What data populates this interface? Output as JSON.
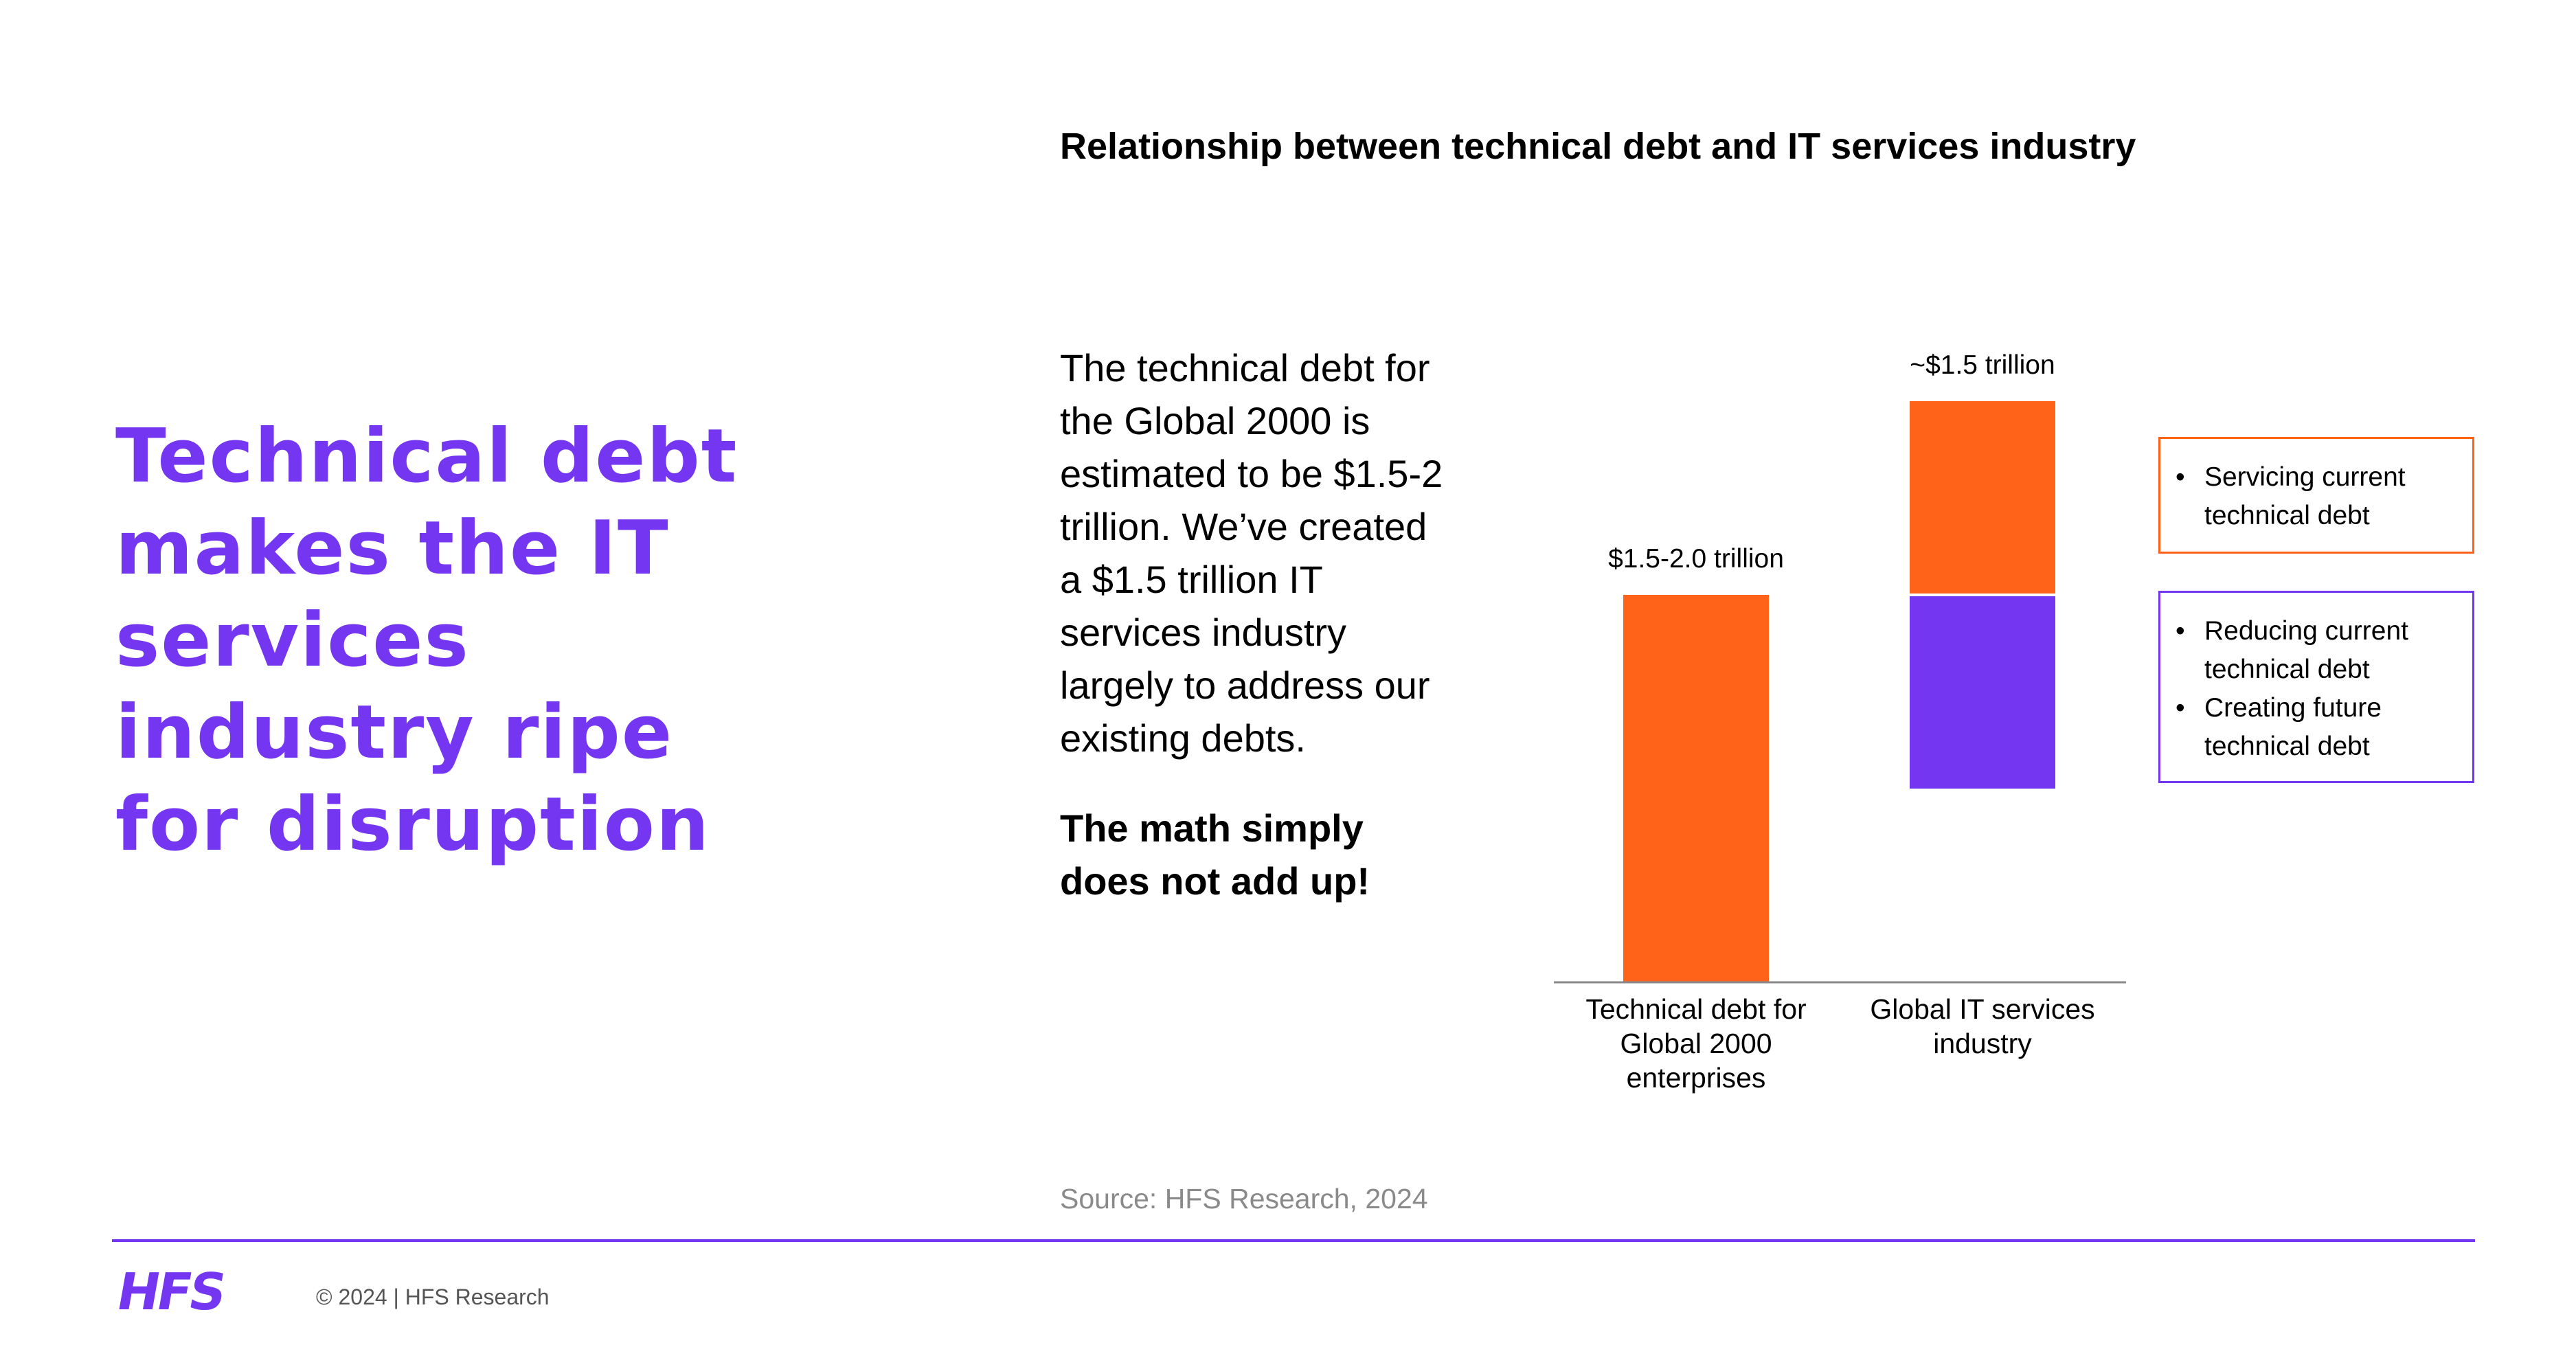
{
  "headline": [
    "Technical debt",
    "makes the IT",
    "services",
    "industry ripe",
    "for disruption"
  ],
  "body_text": [
    "The technical debt for",
    "the Global 2000 is",
    "estimated to be $1.5-2",
    "trillion. We’ve created",
    "a $1.5 trillion IT",
    "services industry",
    "largely to address our",
    "existing debts."
  ],
  "emphasis": [
    "The math simply",
    "does not add up!"
  ],
  "source": "Source: HFS Research, 2024",
  "footer": {
    "logo_text": "HFS",
    "copyright": "© 2024 | HFS Research"
  },
  "colors": {
    "accent": "#7436f0",
    "orange": "#ff6319",
    "purple": "#7436f0",
    "axis": "#8a8a8a",
    "source": "#8a8a8a"
  },
  "chart_data": {
    "type": "bar",
    "title": "Relationship between technical debt and IT services industry",
    "xlabel": "",
    "ylabel": "",
    "grid": false,
    "legend_placement": "right",
    "categories": [
      [
        "Technical debt for",
        "Global 2000",
        "enterprises"
      ],
      [
        "Global IT services",
        "industry"
      ]
    ],
    "bars": [
      {
        "label": "$1.5-2.0 trillion",
        "value": 1.5,
        "segments": [
          {
            "series": 0,
            "value": 1.5
          }
        ]
      },
      {
        "label": "~$1.5 trillion",
        "value": 1.5,
        "base": 0.75,
        "segments": [
          {
            "series": 1,
            "value": 0.75
          },
          {
            "series": 0,
            "value": 0.75
          }
        ]
      }
    ],
    "series": [
      {
        "color": "#ff6319",
        "legend": [
          "Servicing current technical debt"
        ]
      },
      {
        "color": "#7436f0",
        "legend": [
          "Reducing current technical debt",
          "Creating future technical debt"
        ]
      }
    ],
    "ylim": [
      0,
      2.25
    ]
  }
}
